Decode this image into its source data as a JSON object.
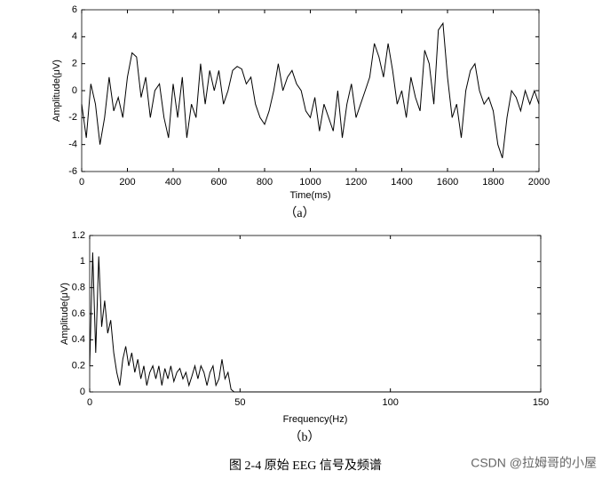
{
  "chart_data": [
    {
      "type": "line",
      "xlabel": "Time(ms)",
      "ylabel": "Amplitude(μV)",
      "label": "（a）",
      "color": "#000000",
      "x": [
        0,
        20,
        40,
        60,
        80,
        100,
        120,
        140,
        160,
        180,
        200,
        220,
        240,
        260,
        280,
        300,
        320,
        340,
        360,
        380,
        400,
        420,
        440,
        460,
        480,
        500,
        520,
        540,
        560,
        580,
        600,
        620,
        640,
        660,
        680,
        700,
        720,
        740,
        760,
        780,
        800,
        820,
        840,
        860,
        880,
        900,
        920,
        940,
        960,
        980,
        1000,
        1020,
        1040,
        1060,
        1080,
        1100,
        1120,
        1140,
        1160,
        1180,
        1200,
        1220,
        1240,
        1260,
        1280,
        1300,
        1320,
        1340,
        1360,
        1380,
        1400,
        1420,
        1440,
        1460,
        1480,
        1500,
        1520,
        1540,
        1560,
        1580,
        1600,
        1620,
        1640,
        1660,
        1680,
        1700,
        1720,
        1740,
        1760,
        1780,
        1800,
        1820,
        1840,
        1860,
        1880,
        1900,
        1920,
        1940,
        1960,
        1980,
        2000
      ],
      "values": [
        -1,
        -3.5,
        0.5,
        -1,
        -4,
        -2,
        1,
        -1.5,
        -0.5,
        -2,
        1,
        2.8,
        2.5,
        -0.5,
        1,
        -2,
        0,
        0.5,
        -2,
        -3.5,
        0.5,
        -2,
        1,
        -3.5,
        -1,
        -2,
        2,
        -1,
        1.5,
        0,
        1.5,
        -1,
        0,
        1.5,
        1.8,
        1.6,
        0.5,
        1,
        -1,
        -2,
        -2.5,
        -1.5,
        0,
        2,
        0,
        1,
        1.5,
        0.5,
        0,
        -1.5,
        -2,
        -0.5,
        -3,
        -1,
        -2,
        -3,
        0,
        -3.5,
        -1,
        0.5,
        -2,
        -1,
        0,
        1,
        3.5,
        2.5,
        1,
        3.5,
        1.5,
        -1,
        0,
        -2,
        1,
        -0.5,
        -1.5,
        3,
        2,
        -1,
        4.5,
        5,
        1,
        -2,
        -1,
        -3.5,
        0,
        1.5,
        2,
        0,
        -1,
        -0.5,
        -1.5,
        -4,
        -5,
        -2,
        0,
        -0.5,
        -1.5,
        0,
        -1,
        0,
        -1
      ],
      "xlim": [
        0,
        2000
      ],
      "xticks": [
        0,
        200,
        400,
        600,
        800,
        1000,
        1200,
        1400,
        1600,
        1800,
        2000
      ],
      "ylim": [
        -6,
        6
      ],
      "yticks": [
        -6,
        -4,
        -2,
        0,
        2,
        4,
        6
      ]
    },
    {
      "type": "line",
      "xlabel": "Frequency(Hz)",
      "ylabel": "Amplitude(μV)",
      "label": "（b）",
      "color": "#000000",
      "x": [
        0,
        1,
        2,
        3,
        4,
        5,
        6,
        7,
        8,
        9,
        10,
        11,
        12,
        13,
        14,
        15,
        16,
        17,
        18,
        19,
        20,
        21,
        22,
        23,
        24,
        25,
        26,
        27,
        28,
        29,
        30,
        31,
        32,
        33,
        34,
        35,
        36,
        37,
        38,
        39,
        40,
        41,
        42,
        43,
        44,
        45,
        46,
        47,
        48,
        49,
        50,
        60,
        70,
        80,
        90,
        100,
        110,
        120,
        130,
        140,
        150
      ],
      "values": [
        0.2,
        1.07,
        0.3,
        1.04,
        0.5,
        0.7,
        0.45,
        0.55,
        0.3,
        0.15,
        0.05,
        0.25,
        0.35,
        0.2,
        0.3,
        0.15,
        0.25,
        0.1,
        0.2,
        0.05,
        0.15,
        0.2,
        0.1,
        0.2,
        0.05,
        0.18,
        0.1,
        0.2,
        0.08,
        0.15,
        0.18,
        0.1,
        0.15,
        0.05,
        0.12,
        0.2,
        0.1,
        0.2,
        0.15,
        0.05,
        0.15,
        0.2,
        0.05,
        0.1,
        0.25,
        0.1,
        0.15,
        0.02,
        0,
        0,
        0,
        0,
        0,
        0,
        0,
        0,
        0,
        0,
        0,
        0,
        0
      ],
      "xlim": [
        0,
        150
      ],
      "xticks": [
        0,
        50,
        100,
        150
      ],
      "ylim": [
        0,
        1.2
      ],
      "yticks": [
        0,
        0.2,
        0.4,
        0.6,
        0.8,
        1,
        1.2
      ]
    }
  ],
  "figure": {
    "caption": "图 2-4  原始 EEG 信号及频谱",
    "watermark": "CSDN @拉姆哥的小屋"
  }
}
